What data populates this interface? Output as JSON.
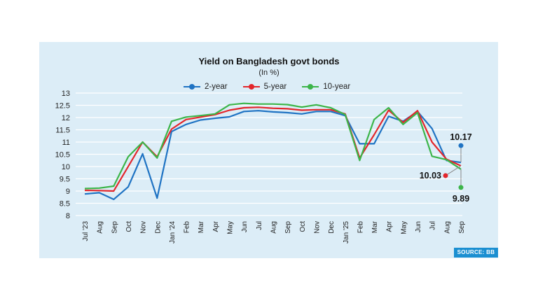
{
  "chart_data": {
    "type": "line",
    "title": "Yield on Bangladesh govt bonds",
    "subtitle": "(In %)",
    "categories": [
      "Jul '23",
      "Aug",
      "Sep",
      "Oct",
      "Nov",
      "Dec",
      "Jan '24",
      "Feb",
      "Mar",
      "Apr",
      "May",
      "Jun",
      "Jul",
      "Aug",
      "Sep",
      "Oct",
      "Nov",
      "Dec",
      "Jan '25",
      "Feb",
      "Mar",
      "Apr",
      "May",
      "Jun",
      "Jul",
      "Aug",
      "Sep"
    ],
    "ylim": [
      8,
      13
    ],
    "yticks": [
      "13",
      "12.5",
      "12",
      "11.5",
      "11",
      "10.5",
      "10",
      "9.5",
      "9",
      "8.5",
      "8"
    ],
    "legend_position": "top-center",
    "series": [
      {
        "name": "2-year",
        "color": "#1f73c3",
        "values": [
          8.88,
          8.93,
          8.66,
          9.17,
          10.52,
          8.71,
          11.43,
          11.72,
          11.9,
          11.97,
          12.03,
          12.25,
          12.28,
          12.23,
          12.2,
          12.15,
          12.25,
          12.25,
          12.08,
          10.93,
          10.93,
          12.05,
          11.85,
          12.25,
          11.55,
          10.25,
          10.17
        ]
      },
      {
        "name": "5-year",
        "color": "#e3262b",
        "values": [
          9.03,
          9.02,
          9.0,
          10.0,
          11.0,
          10.4,
          11.53,
          11.92,
          12.02,
          12.12,
          12.3,
          12.4,
          12.42,
          12.38,
          12.36,
          12.3,
          12.32,
          12.32,
          12.15,
          10.35,
          11.3,
          12.3,
          11.8,
          12.28,
          11.0,
          10.3,
          10.03
        ]
      },
      {
        "name": "10-year",
        "color": "#3cb54a",
        "values": [
          9.1,
          9.12,
          9.2,
          10.4,
          11.0,
          10.35,
          11.85,
          12.02,
          12.08,
          12.15,
          12.52,
          12.58,
          12.55,
          12.55,
          12.53,
          12.43,
          12.52,
          12.4,
          12.12,
          10.25,
          11.92,
          12.4,
          11.72,
          12.2,
          10.42,
          10.28,
          9.89
        ]
      }
    ],
    "annotations": [
      {
        "series": "2-year",
        "label": "10.17"
      },
      {
        "series": "5-year",
        "label": "10.03"
      },
      {
        "series": "10-year",
        "label": "9.89"
      }
    ]
  },
  "source_label": "SOURCE: BB"
}
